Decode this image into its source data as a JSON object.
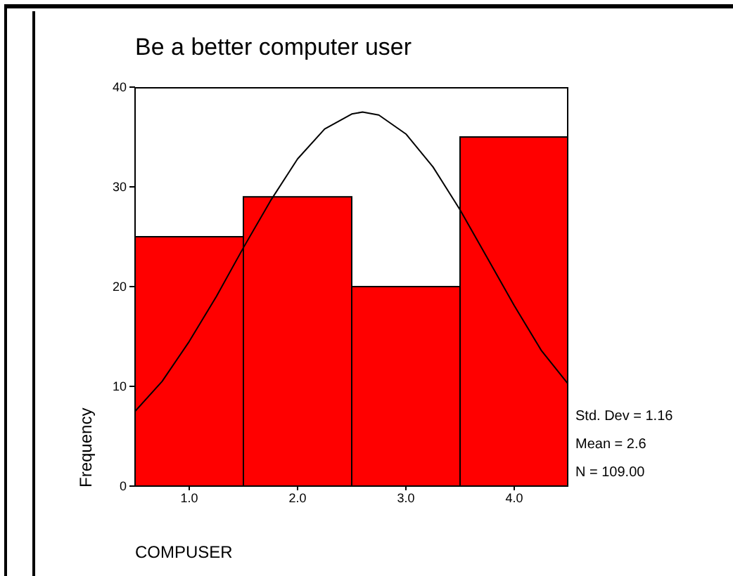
{
  "chart_data": {
    "type": "histogram",
    "title": "Be a better computer user",
    "xlabel": "COMPUSER",
    "ylabel": "Frequency",
    "bins": [
      0.5,
      1.5,
      2.5,
      3.5,
      4.5
    ],
    "values": [
      25,
      29,
      20,
      35
    ],
    "color": "#ff0000",
    "series": [
      {
        "type": "line",
        "color": "#000000",
        "x": [
          0.5,
          0.75,
          1.0,
          1.25,
          1.5,
          1.75,
          2.0,
          2.25,
          2.5,
          2.6,
          2.75,
          3.0,
          3.25,
          3.5,
          3.75,
          4.0,
          4.25,
          4.5
        ],
        "values": [
          7.5,
          10.5,
          14.5,
          19.0,
          23.9,
          28.6,
          32.8,
          35.8,
          37.3,
          37.5,
          37.2,
          35.3,
          32.0,
          27.7,
          22.9,
          18.1,
          13.6,
          10.2
        ]
      }
    ],
    "xlim": [
      0.5,
      4.5
    ],
    "xticks": [
      {
        "value": 1,
        "label": "1.0"
      },
      {
        "value": 2,
        "label": "2.0"
      },
      {
        "value": 3,
        "label": "3.0"
      },
      {
        "value": 4,
        "label": "4.0"
      }
    ],
    "ylim": [
      0,
      40
    ],
    "yticks": [
      0,
      10,
      20,
      30,
      40
    ],
    "annotations": [
      "Std. Dev = 1.16",
      "Mean = 2.6",
      "N = 109.00"
    ],
    "grid": false,
    "legend": false,
    "marker": "none",
    "line_style": "solid"
  }
}
